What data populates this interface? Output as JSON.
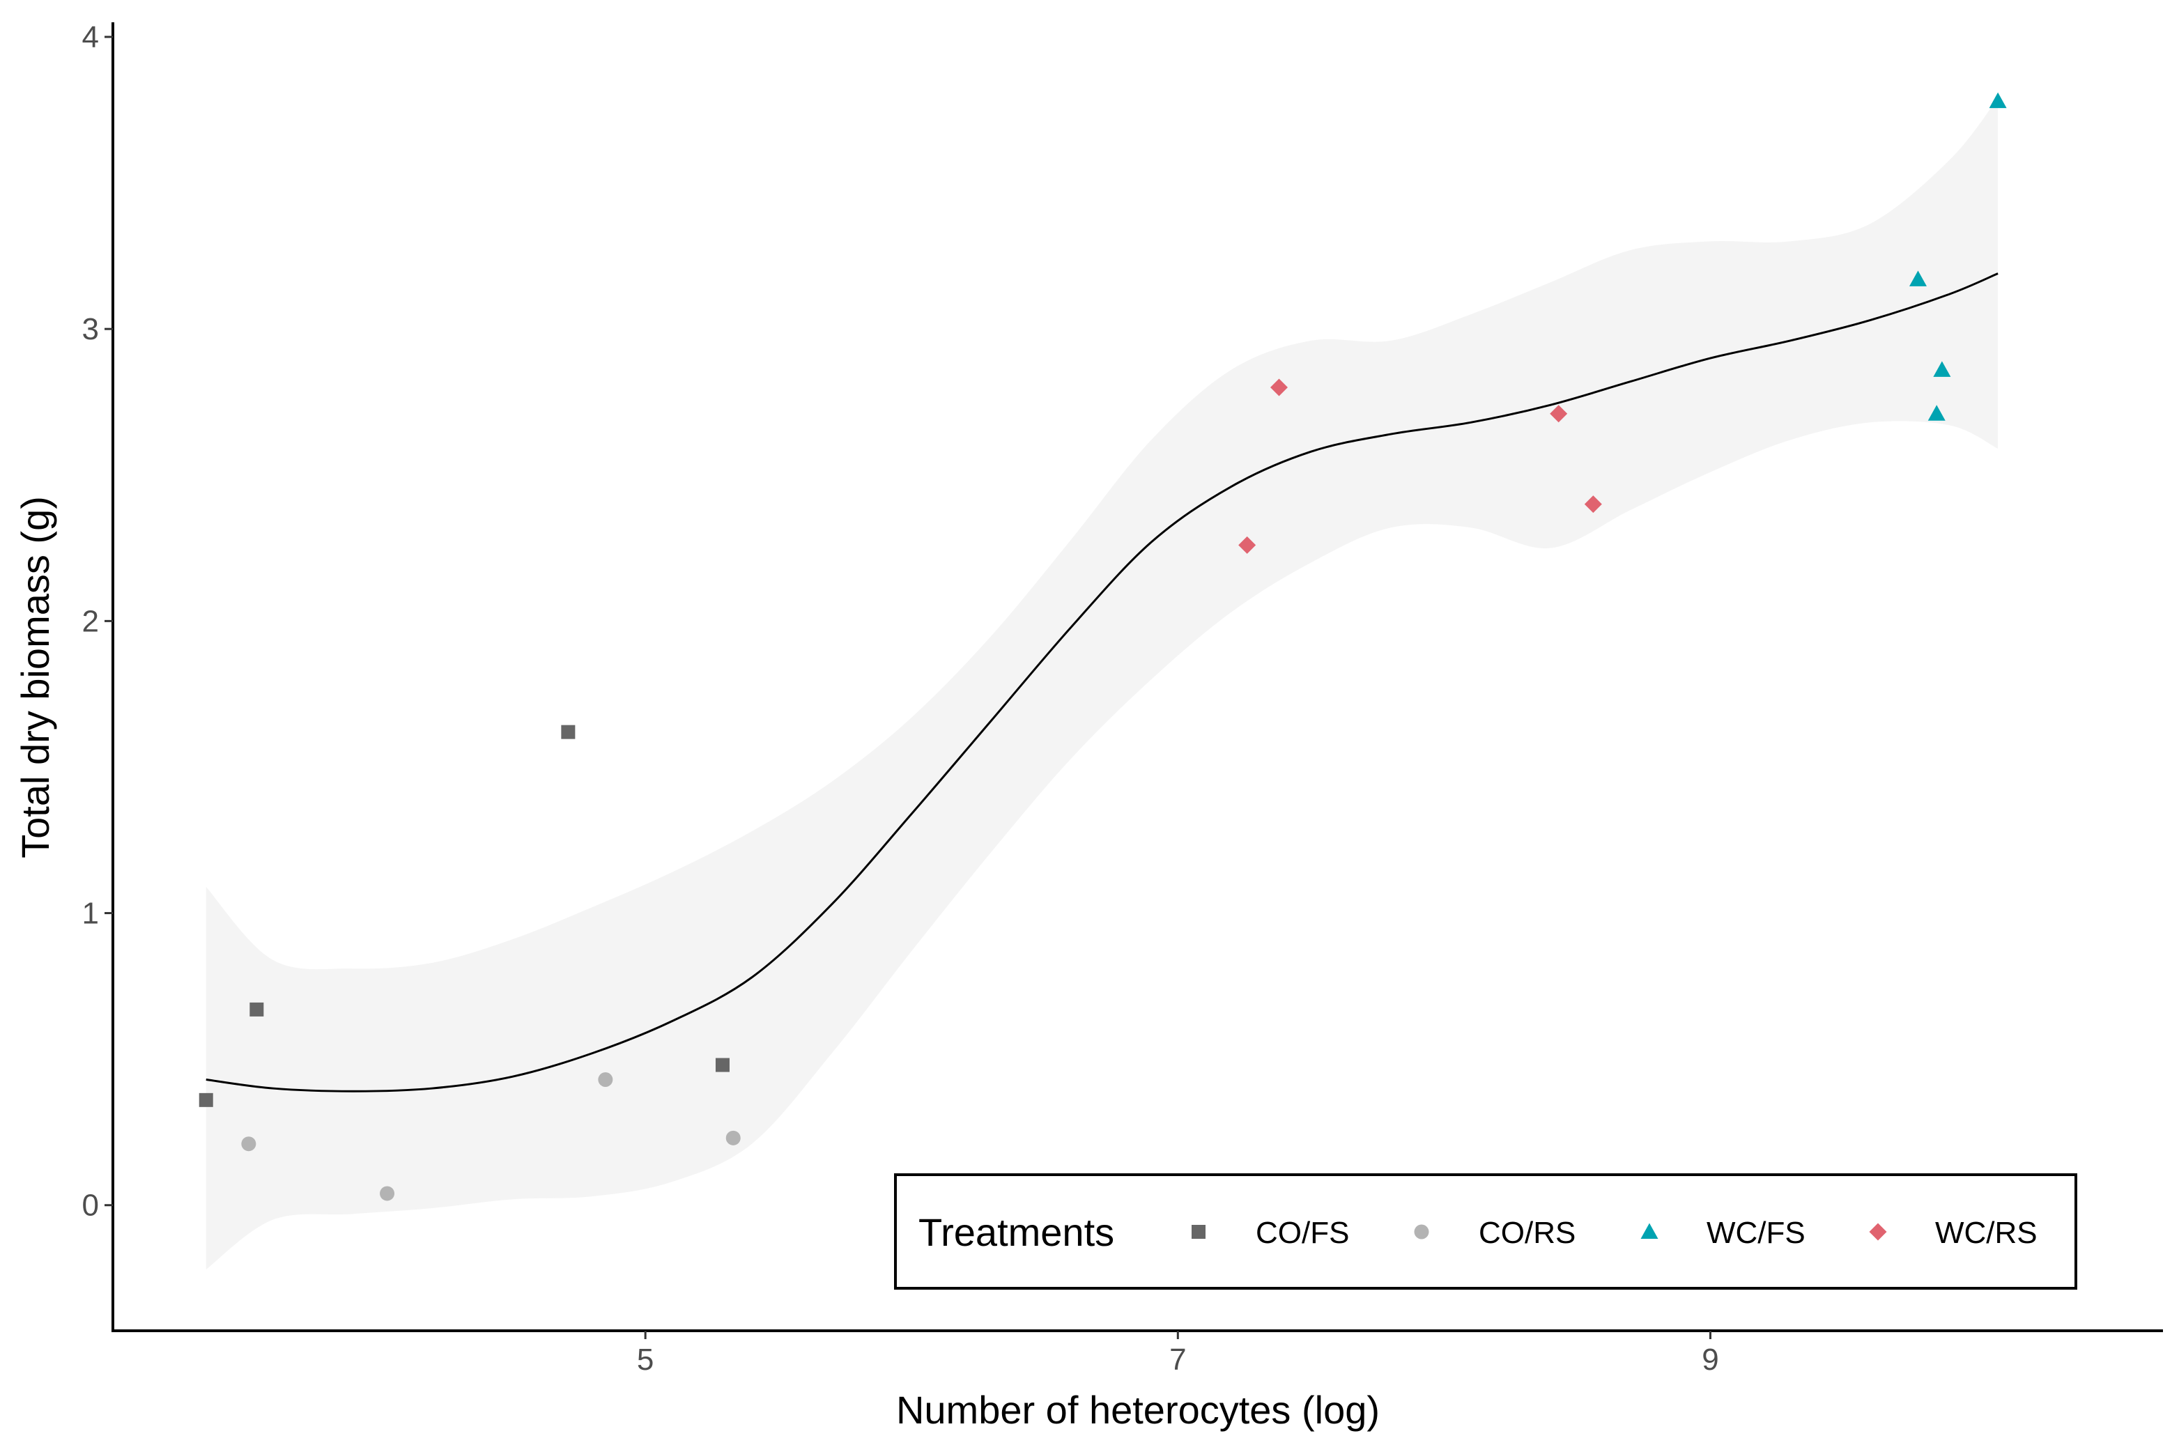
{
  "chart_data": {
    "type": "scatter",
    "xlabel": "Number of heterocytes (log)",
    "ylabel": "Total dry biomass (g)",
    "xlim": [
      3.0,
      10.7
    ],
    "ylim": [
      -0.43,
      4.05
    ],
    "x_ticks": [
      5,
      7,
      9
    ],
    "x_tick_labels": [
      "5",
      "7",
      "9"
    ],
    "y_ticks": [
      0,
      1,
      2,
      3,
      4
    ],
    "y_tick_labels": [
      "0",
      "1",
      "2",
      "3",
      "4"
    ],
    "grid": false,
    "legend": {
      "title": "Treatments",
      "position": "bottom-right"
    },
    "series": [
      {
        "name": "CO/FS",
        "shape": "square",
        "color": "#666666",
        "points": [
          [
            3.35,
            0.36
          ],
          [
            3.54,
            0.67
          ],
          [
            4.71,
            1.62
          ],
          [
            5.29,
            0.48
          ]
        ]
      },
      {
        "name": "CO/RS",
        "shape": "circle",
        "color": "#b3b3b3",
        "points": [
          [
            3.51,
            0.21
          ],
          [
            4.03,
            0.04
          ],
          [
            4.85,
            0.43
          ],
          [
            5.33,
            0.23
          ]
        ]
      },
      {
        "name": "WC/FS",
        "shape": "triangle",
        "color": "#00a3b1",
        "points": [
          [
            9.78,
            3.17
          ],
          [
            9.85,
            2.71
          ],
          [
            9.87,
            2.86
          ],
          [
            10.08,
            3.78
          ]
        ]
      },
      {
        "name": "WC/RS",
        "shape": "diamond",
        "color": "#e0636f",
        "points": [
          [
            7.26,
            2.26
          ],
          [
            7.38,
            2.8
          ],
          [
            8.43,
            2.71
          ],
          [
            8.56,
            2.4
          ]
        ]
      }
    ],
    "smooth": {
      "method": "loess",
      "color": "#000000",
      "band_color": "#ebebeb",
      "x": [
        3.35,
        3.6,
        3.9,
        4.2,
        4.5,
        4.8,
        5.1,
        5.4,
        5.7,
        6.0,
        6.3,
        6.6,
        6.9,
        7.2,
        7.5,
        7.8,
        8.1,
        8.4,
        8.7,
        9.0,
        9.3,
        9.6,
        9.9,
        10.08
      ],
      "fit": [
        0.43,
        0.4,
        0.39,
        0.4,
        0.44,
        0.52,
        0.63,
        0.78,
        1.03,
        1.34,
        1.66,
        1.98,
        2.27,
        2.46,
        2.58,
        2.64,
        2.68,
        2.74,
        2.82,
        2.9,
        2.96,
        3.03,
        3.12,
        3.19
      ],
      "upper": [
        1.09,
        0.84,
        0.81,
        0.83,
        0.91,
        1.02,
        1.14,
        1.28,
        1.45,
        1.67,
        1.95,
        2.28,
        2.62,
        2.86,
        2.96,
        2.96,
        3.05,
        3.16,
        3.27,
        3.3,
        3.3,
        3.36,
        3.58,
        3.79
      ],
      "lower": [
        -0.22,
        -0.05,
        -0.03,
        -0.01,
        0.02,
        0.03,
        0.08,
        0.21,
        0.52,
        0.87,
        1.21,
        1.53,
        1.8,
        2.03,
        2.2,
        2.32,
        2.32,
        2.25,
        2.38,
        2.51,
        2.62,
        2.68,
        2.67,
        2.59
      ]
    }
  }
}
